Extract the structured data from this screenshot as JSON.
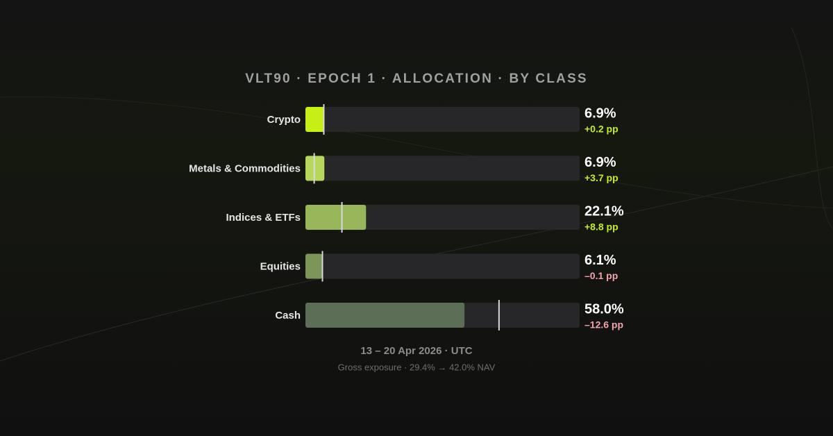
{
  "chart_data": {
    "type": "bar",
    "orientation": "horizontal",
    "title": "VLT90 · EPOCH 1 · ALLOCATION · BY CLASS",
    "categories": [
      "Crypto",
      "Metals & Commodities",
      "Indices & ETFs",
      "Equities",
      "Cash"
    ],
    "values": [
      6.9,
      6.9,
      22.1,
      6.1,
      58.0
    ],
    "value_labels": [
      "6.9%",
      "6.9%",
      "22.1%",
      "6.1%",
      "58.0%"
    ],
    "changes": [
      0.2,
      3.7,
      8.8,
      -0.1,
      -12.6
    ],
    "change_labels": [
      "+0.2 pp",
      "+3.7 pp",
      "+8.8 pp",
      "–0.1 pp",
      "–12.6 pp"
    ],
    "colors": [
      "#c6f014",
      "#b6d65c",
      "#97b75a",
      "#7b9658",
      "#5d6e56"
    ],
    "track_color": "#27272a",
    "marker_color": "#d8d8d8",
    "positive_color": "#c6f014",
    "negative_color": "#f4a3ab",
    "xlim": [
      0,
      100
    ],
    "date_range": "13 – 20 Apr 2026 · UTC",
    "note": "Gross exposure · 29.4% → 42.0% NAV"
  }
}
